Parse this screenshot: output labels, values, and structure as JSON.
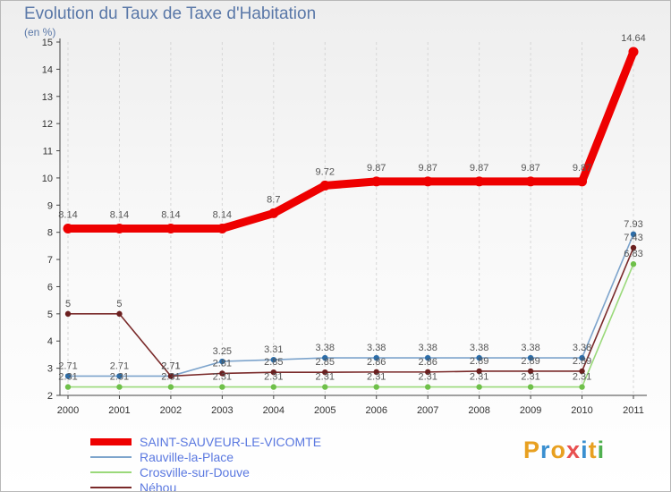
{
  "header": {
    "title": "Evolution du Taux de Taxe d'Habitation",
    "subtitle": "(en %)"
  },
  "brand": {
    "text": "Proxiti",
    "colors": [
      "#e8a020",
      "#3a8fd0",
      "#e8a020",
      "#e85050",
      "#3a8fd0",
      "#e8a020",
      "#50b050"
    ]
  },
  "chart_data": {
    "type": "line",
    "x": [
      "2000",
      "2001",
      "2002",
      "2003",
      "2004",
      "2005",
      "2006",
      "2007",
      "2008",
      "2009",
      "2010",
      "2011"
    ],
    "ylim": [
      2,
      15
    ],
    "yticks": [
      2,
      3,
      4,
      5,
      6,
      7,
      8,
      9,
      10,
      11,
      12,
      13,
      14,
      15
    ],
    "grid": "vertical",
    "legend_position": "bottom-left",
    "series": [
      {
        "name": "SAINT-SAUVEUR-LE-VICOMTE",
        "color": "#ee0000",
        "thick": true,
        "values": [
          8.14,
          8.14,
          8.14,
          8.14,
          8.7,
          9.72,
          9.87,
          9.87,
          9.87,
          9.87,
          9.87,
          14.64
        ],
        "labels": [
          "8.14",
          "8.14",
          "8.14",
          "8.14",
          "8.7",
          "9.72",
          "9.87",
          "9.87",
          "9.87",
          "9.87",
          "9.87",
          "14.64"
        ]
      },
      {
        "name": "Rauville-la-Place",
        "color": "#7da4cc",
        "marker": "#2d6da8",
        "thick": false,
        "values": [
          2.71,
          2.71,
          2.71,
          3.25,
          3.31,
          3.38,
          3.38,
          3.38,
          3.38,
          3.38,
          3.38,
          7.93
        ],
        "labels": [
          "2.71",
          "2.71",
          "2.71",
          "3.25",
          "3.31",
          "3.38",
          "3.38",
          "3.38",
          "3.38",
          "3.38",
          "3.38",
          "7.93"
        ]
      },
      {
        "name": "Crosville-sur-Douve",
        "color": "#9ad97a",
        "marker": "#6fc04a",
        "thick": false,
        "values": [
          2.31,
          2.31,
          2.31,
          2.31,
          2.31,
          2.31,
          2.31,
          2.31,
          2.31,
          2.31,
          2.31,
          6.83
        ],
        "labels": [
          "2.31",
          "2.31",
          "2.31",
          "2.31",
          "2.31",
          "2.31",
          "2.31",
          "2.31",
          "2.31",
          "2.31",
          "2.31",
          "6.83"
        ]
      },
      {
        "name": "Néhou",
        "color": "#7a2a2a",
        "marker": "#6b1f1f",
        "thick": false,
        "values": [
          5,
          5,
          2.71,
          2.81,
          2.85,
          2.85,
          2.86,
          2.86,
          2.89,
          2.89,
          2.89,
          7.43
        ],
        "labels": [
          "5",
          "5",
          "2.71",
          "2.81",
          "2.85",
          "2.85",
          "2.86",
          "2.86",
          "2.89",
          "2.89",
          "2.89",
          "7.43"
        ]
      }
    ]
  }
}
